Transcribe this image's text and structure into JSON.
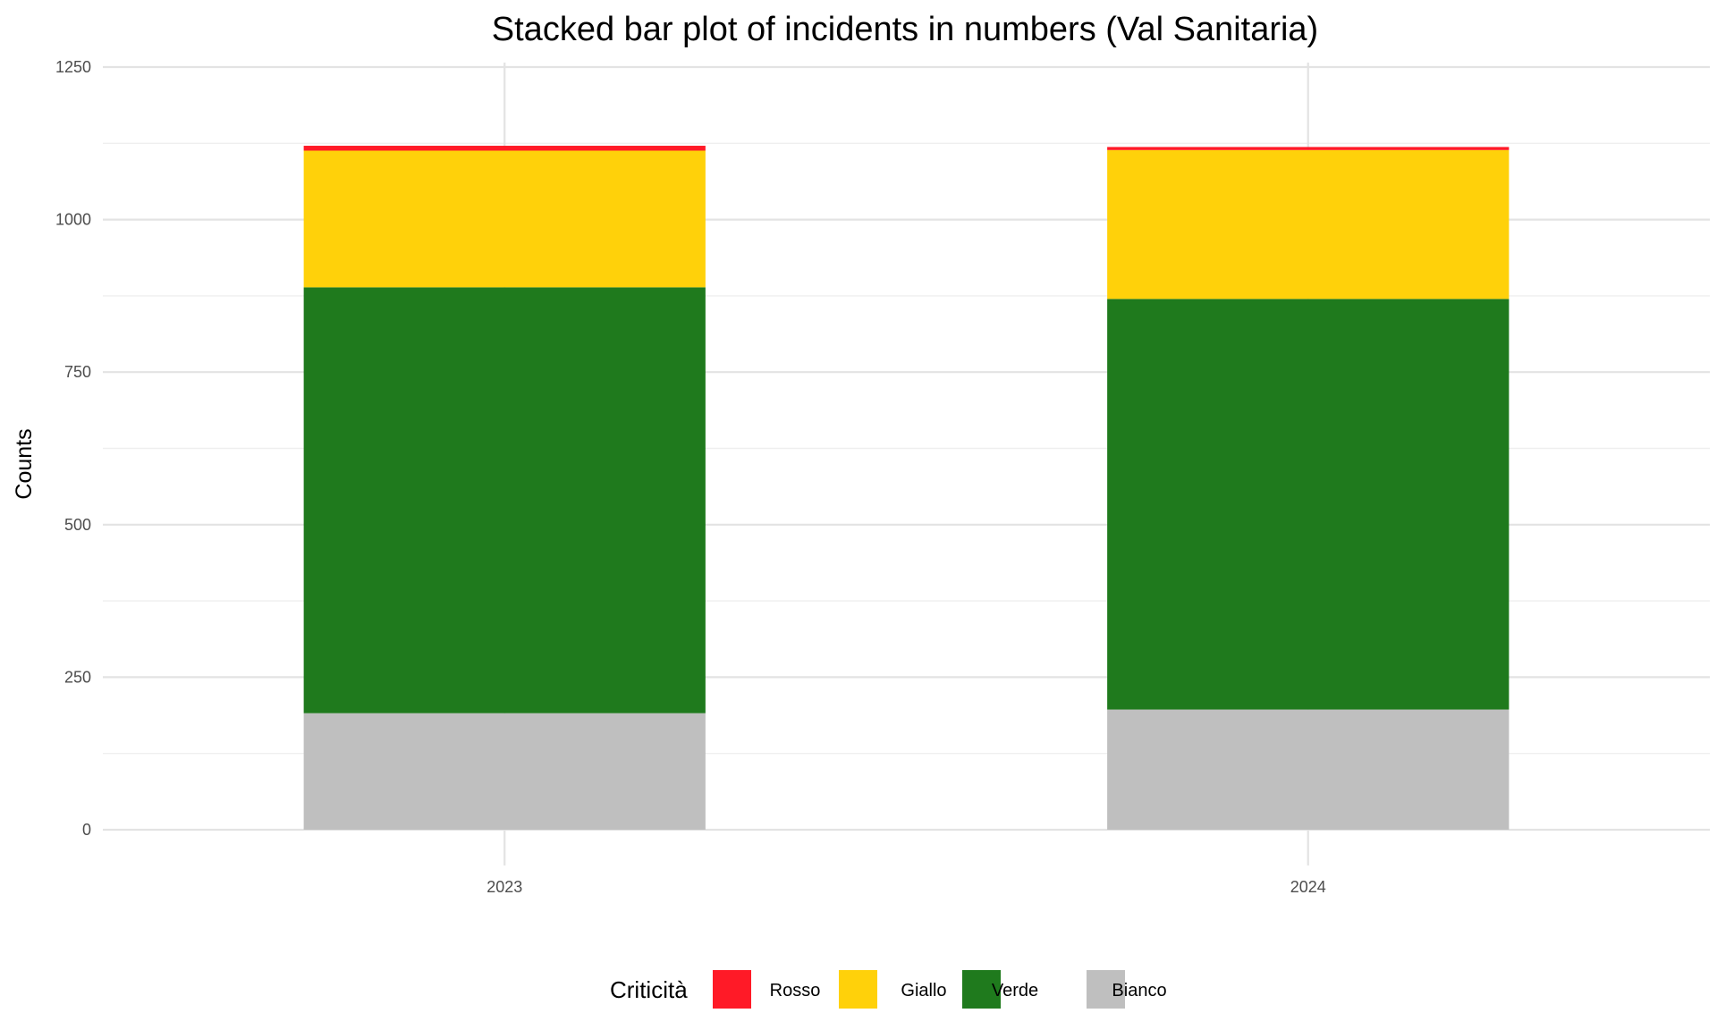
{
  "chart_data": {
    "type": "bar",
    "stacked": true,
    "title": "Stacked bar plot of incidents in numbers (Val Sanitaria)",
    "xlabel": "",
    "ylabel": "Counts",
    "categories": [
      "2023",
      "2024"
    ],
    "ylim": [
      0,
      1250
    ],
    "yticks": [
      0,
      250,
      500,
      750,
      1000,
      1250
    ],
    "grid": true,
    "legend": {
      "title": "Criticità",
      "position": "bottom"
    },
    "series": [
      {
        "name": "Bianco",
        "color": "#BFBFBF",
        "values": [
          191,
          197
        ]
      },
      {
        "name": "Verde",
        "color": "#1F7A1D",
        "values": [
          698,
          673
        ]
      },
      {
        "name": "Giallo",
        "color": "#FFD10A",
        "values": [
          224,
          244
        ]
      },
      {
        "name": "Rosso",
        "color": "#FF1A27",
        "values": [
          8,
          5
        ]
      }
    ],
    "legend_order": [
      "Rosso",
      "Giallo",
      "Verde",
      "Bianco"
    ]
  }
}
